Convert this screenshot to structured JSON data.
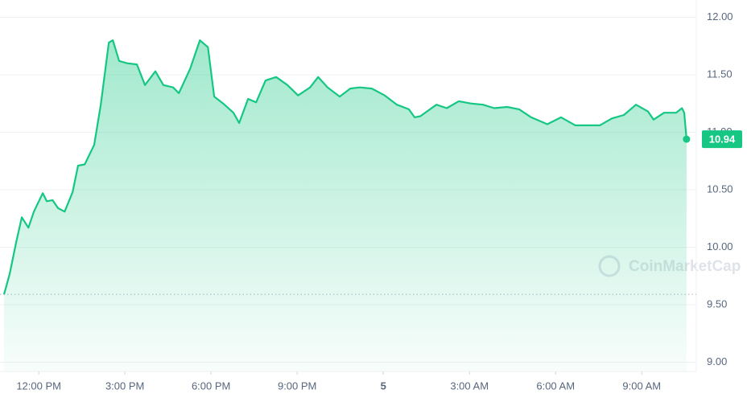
{
  "chart_data": {
    "type": "area",
    "watermark": "CoinMarketCap",
    "x": [
      10.79,
      10.99,
      11.22,
      11.41,
      11.64,
      11.83,
      12.14,
      12.28,
      12.48,
      12.67,
      12.9,
      13.18,
      13.37,
      13.6,
      13.93,
      14.16,
      14.44,
      14.58,
      14.8,
      15.08,
      15.42,
      15.7,
      16.06,
      16.34,
      16.68,
      16.88,
      17.27,
      17.61,
      17.89,
      18.11,
      18.42,
      18.78,
      18.98,
      19.29,
      19.57,
      19.9,
      20.27,
      20.66,
      21.03,
      21.45,
      21.73,
      22.06,
      22.48,
      22.85,
      23.18,
      23.6,
      24.05,
      24.47,
      24.89,
      25.09,
      25.29,
      25.85,
      26.21,
      26.63,
      27.05,
      27.47,
      27.86,
      28.31,
      28.73,
      29.15,
      29.71,
      30.19,
      30.69,
      31.12,
      31.54,
      31.96,
      32.38,
      32.8,
      33.22,
      33.41,
      33.78,
      34.2,
      34.4,
      34.48,
      34.56
    ],
    "series": [
      {
        "color": "#16c784",
        "values": [
          9.59,
          9.77,
          10.05,
          10.26,
          10.17,
          10.31,
          10.47,
          10.4,
          10.41,
          10.34,
          10.31,
          10.48,
          10.71,
          10.72,
          10.89,
          11.24,
          11.78,
          11.8,
          11.62,
          11.6,
          11.59,
          11.41,
          11.53,
          11.41,
          11.39,
          11.34,
          11.55,
          11.8,
          11.74,
          11.31,
          11.25,
          11.17,
          11.08,
          11.29,
          11.26,
          11.45,
          11.48,
          11.41,
          11.32,
          11.39,
          11.48,
          11.39,
          11.31,
          11.38,
          11.39,
          11.38,
          11.32,
          11.24,
          11.2,
          11.13,
          11.14,
          11.24,
          11.21,
          11.27,
          11.25,
          11.24,
          11.21,
          11.22,
          11.2,
          11.13,
          11.07,
          11.13,
          11.06,
          11.06,
          11.06,
          11.12,
          11.15,
          11.24,
          11.18,
          11.11,
          11.17,
          11.17,
          11.21,
          11.17,
          10.94
        ]
      }
    ],
    "reference_line": 9.59,
    "xlim": [
      10.65,
      34.9
    ],
    "xticks": [
      {
        "value": 12,
        "label": "12:00 PM"
      },
      {
        "value": 15,
        "label": "3:00 PM"
      },
      {
        "value": 18,
        "label": "6:00 PM"
      },
      {
        "value": 21,
        "label": "9:00 PM"
      },
      {
        "value": 24,
        "label": "5"
      },
      {
        "value": 27,
        "label": "3:00 AM"
      },
      {
        "value": 30,
        "label": "6:00 AM"
      },
      {
        "value": 33,
        "label": "9:00 AM"
      }
    ],
    "ylim": [
      8.92,
      12.15
    ],
    "yticks": [
      {
        "value": 9,
        "label": "9.00"
      },
      {
        "value": 9.5,
        "label": "9.50"
      },
      {
        "value": 10,
        "label": "10.00"
      },
      {
        "value": 10.5,
        "label": "10.50"
      },
      {
        "value": 11,
        "label": "11.00"
      },
      {
        "value": 11.5,
        "label": "11.50"
      },
      {
        "value": 12,
        "label": "12.00"
      }
    ],
    "grid": true
  }
}
